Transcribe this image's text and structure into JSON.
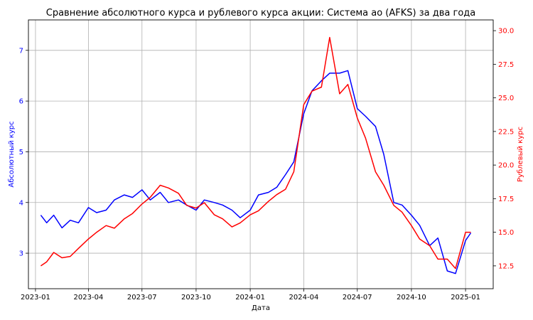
{
  "chart_data": {
    "type": "line",
    "title": "Сравнение абсолютного курса и рублевого курса акции: Система ао (AFKS) за два года",
    "xlabel": "Дата",
    "ylabel_left": "Абсолютный курс",
    "ylabel_right": "Рублевый курс",
    "grid": true,
    "legend": "none",
    "x_ticks": [
      "2023-01",
      "2023-04",
      "2023-07",
      "2023-10",
      "2024-01",
      "2024-04",
      "2024-07",
      "2024-10",
      "2025-01"
    ],
    "ylim_left": [
      2.3,
      7.6
    ],
    "ylim_right": [
      10.8,
      30.8
    ],
    "yticks_left": [
      "3",
      "4",
      "5",
      "6",
      "7"
    ],
    "yticks_right": [
      "12.5",
      "15.0",
      "17.5",
      "20.0",
      "22.5",
      "25.0",
      "27.5",
      "30.0"
    ],
    "colors": {
      "left_series": "#0000ff",
      "right_series": "#ff0000",
      "grid": "#b0b0b0"
    },
    "series": [
      {
        "axis": "left",
        "color": "#0000ff",
        "x": [
          "2023-01-10",
          "2023-01-20",
          "2023-02-01",
          "2023-02-15",
          "2023-03-01",
          "2023-03-15",
          "2023-04-01",
          "2023-04-15",
          "2023-05-01",
          "2023-05-15",
          "2023-06-01",
          "2023-06-15",
          "2023-07-01",
          "2023-07-15",
          "2023-08-01",
          "2023-08-15",
          "2023-09-01",
          "2023-09-15",
          "2023-10-01",
          "2023-10-15",
          "2023-11-01",
          "2023-11-15",
          "2023-12-01",
          "2023-12-15",
          "2024-01-01",
          "2024-01-15",
          "2024-02-01",
          "2024-02-15",
          "2024-03-01",
          "2024-03-15",
          "2024-04-01",
          "2024-04-15",
          "2024-05-01",
          "2024-05-15",
          "2024-06-01",
          "2024-06-15",
          "2024-07-01",
          "2024-07-15",
          "2024-08-01",
          "2024-08-15",
          "2024-09-01",
          "2024-09-15",
          "2024-10-01",
          "2024-10-15",
          "2024-11-01",
          "2024-11-15",
          "2024-12-01",
          "2024-12-15",
          "2025-01-01",
          "2025-01-10"
        ],
        "values": [
          3.75,
          3.6,
          3.75,
          3.5,
          3.65,
          3.6,
          3.9,
          3.8,
          3.85,
          4.05,
          4.15,
          4.1,
          4.25,
          4.05,
          4.2,
          4.0,
          4.05,
          3.95,
          3.85,
          4.05,
          4.0,
          3.95,
          3.85,
          3.7,
          3.85,
          4.15,
          4.2,
          4.3,
          4.55,
          4.8,
          5.75,
          6.2,
          6.4,
          6.55,
          6.55,
          6.6,
          5.85,
          5.7,
          5.5,
          4.95,
          4.0,
          3.95,
          3.75,
          3.55,
          3.15,
          3.3,
          2.65,
          2.6,
          3.25,
          3.4
        ]
      },
      {
        "axis": "right",
        "color": "#ff0000",
        "x": [
          "2023-01-10",
          "2023-01-20",
          "2023-02-01",
          "2023-02-15",
          "2023-03-01",
          "2023-03-15",
          "2023-04-01",
          "2023-04-15",
          "2023-05-01",
          "2023-05-15",
          "2023-06-01",
          "2023-06-15",
          "2023-07-01",
          "2023-07-15",
          "2023-08-01",
          "2023-08-15",
          "2023-09-01",
          "2023-09-15",
          "2023-10-01",
          "2023-10-15",
          "2023-11-01",
          "2023-11-15",
          "2023-12-01",
          "2023-12-15",
          "2024-01-01",
          "2024-01-15",
          "2024-02-01",
          "2024-02-15",
          "2024-03-01",
          "2024-03-15",
          "2024-04-01",
          "2024-04-15",
          "2024-05-01",
          "2024-05-15",
          "2024-06-01",
          "2024-06-15",
          "2024-07-01",
          "2024-07-15",
          "2024-08-01",
          "2024-08-15",
          "2024-09-01",
          "2024-09-15",
          "2024-10-01",
          "2024-10-15",
          "2024-11-01",
          "2024-11-15",
          "2024-12-01",
          "2024-12-15",
          "2025-01-01",
          "2025-01-10"
        ],
        "values": [
          12.5,
          12.8,
          13.5,
          13.1,
          13.2,
          13.8,
          14.5,
          15.0,
          15.5,
          15.3,
          16.0,
          16.4,
          17.1,
          17.6,
          18.5,
          18.3,
          17.9,
          17.0,
          16.8,
          17.2,
          16.3,
          16.0,
          15.4,
          15.7,
          16.3,
          16.6,
          17.3,
          17.8,
          18.2,
          19.5,
          24.5,
          25.5,
          25.8,
          29.5,
          25.3,
          26.0,
          23.5,
          22.0,
          19.5,
          18.5,
          17.0,
          16.5,
          15.5,
          14.5,
          14.0,
          13.0,
          13.0,
          12.3,
          15.0,
          15.0
        ]
      }
    ]
  }
}
